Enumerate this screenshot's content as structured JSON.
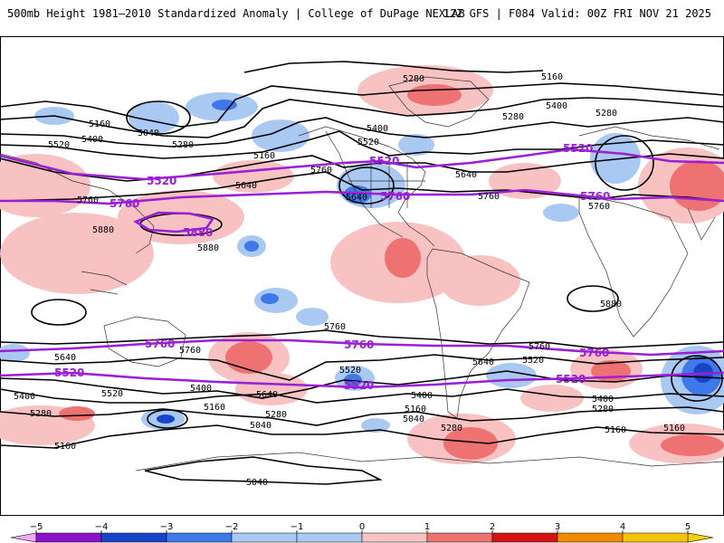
{
  "header": {
    "title": "500mb Height 1981–2010 Standardized Anomaly | College of DuPage NEXLAB",
    "run_info": "12Z GFS | F084 Valid: 00Z FRI NOV 21 2025"
  },
  "colorbar": {
    "ticks": [
      "−5",
      "−4",
      "−3",
      "−2",
      "−1",
      "0",
      "1",
      "2",
      "3",
      "4",
      "5"
    ],
    "colors": [
      "#e06be0",
      "#8a12c8",
      "#1a44c8",
      "#3f78e8",
      "#a9c8f2",
      "#ffffff",
      "#f8c2c2",
      "#ef7272",
      "#d41414",
      "#f08a00",
      "#f5c400"
    ]
  },
  "contour_labels": {
    "c5040": "5040",
    "c5160": "5160",
    "c5280": "5280",
    "c5400": "5400",
    "c5520": "5520",
    "c5640": "5640",
    "c5760": "5760",
    "c5880": "5880"
  },
  "mean_labels": {
    "m5520": "5520",
    "m5760": "5760",
    "m5880": "5880"
  },
  "colors": {
    "mean_contour": "#9a1fd6",
    "height_contour": "#000000",
    "coastline": "#333333"
  }
}
